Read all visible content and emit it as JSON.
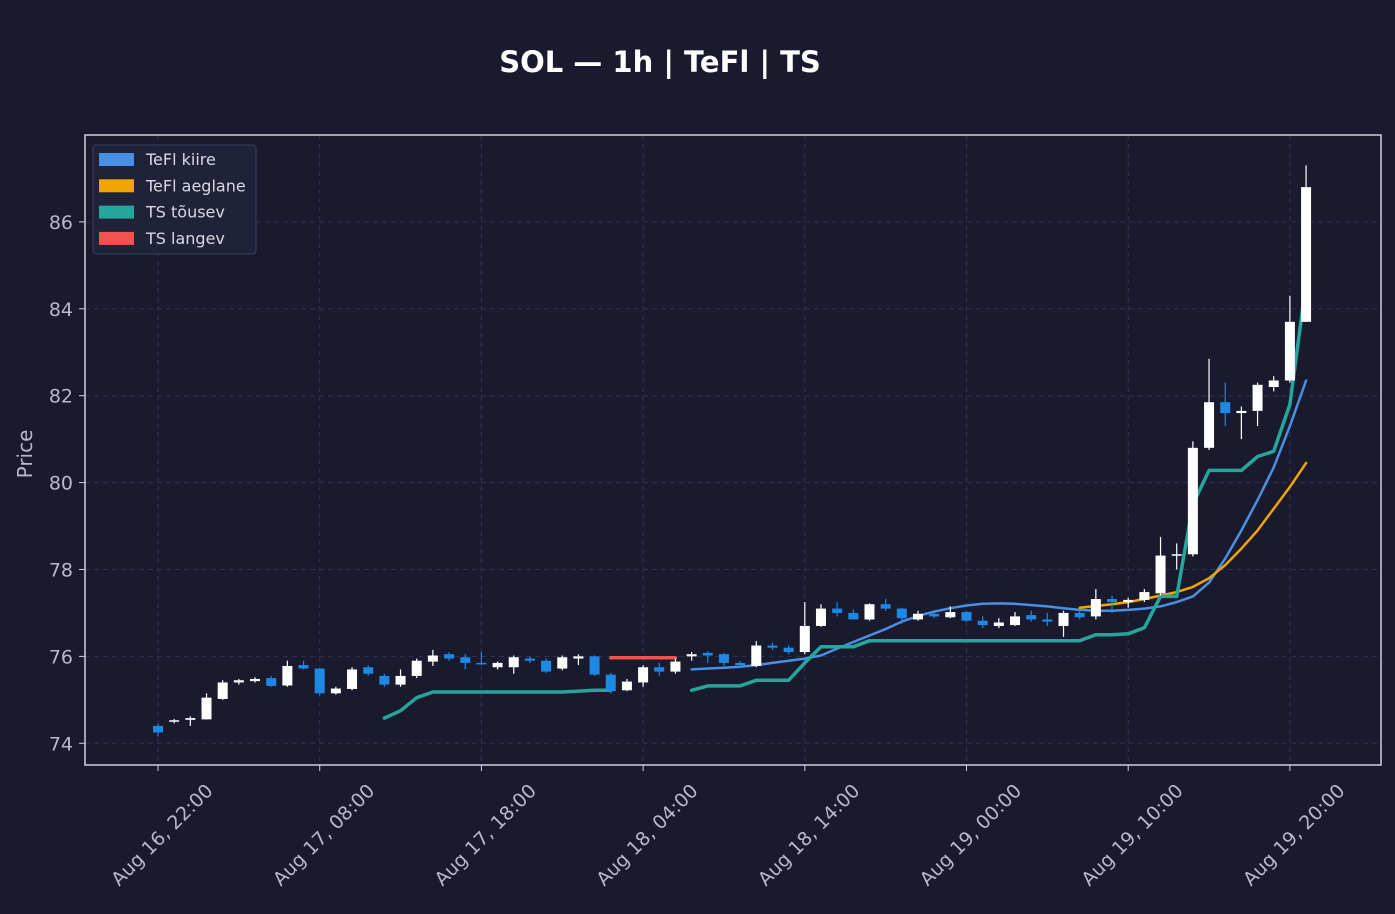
{
  "chart_data": {
    "type": "candlestick",
    "title": "SOL — 1h  |  TeFl  |  TS",
    "ylabel": "Price",
    "xlabel": "",
    "ylim": [
      73.5,
      88.0
    ],
    "y_ticks": [
      74,
      76,
      78,
      80,
      82,
      84,
      86
    ],
    "x_ticks": [
      {
        "hour": 0,
        "label": "Aug 16, 22:00"
      },
      {
        "hour": 10,
        "label": "Aug 17, 08:00"
      },
      {
        "hour": 20,
        "label": "Aug 17, 18:00"
      },
      {
        "hour": 30,
        "label": "Aug 18, 04:00"
      },
      {
        "hour": 40,
        "label": "Aug 18, 14:00"
      },
      {
        "hour": 50,
        "label": "Aug 19, 00:00"
      },
      {
        "hour": 60,
        "label": "Aug 19, 10:00"
      },
      {
        "hour": 70,
        "label": "Aug 19, 20:00"
      }
    ],
    "grid": true,
    "legend_position": "top-left",
    "colors": {
      "background": "#1a1a2e",
      "up_candle": "#ffffff",
      "down_candle": "#1e88e5",
      "tefl_fast": "#4a90e2",
      "tefl_slow": "#f0a500",
      "ts_up": "#26a69a",
      "ts_down": "#ef5350",
      "grid": "#2e3250",
      "axes": "#d0d0d8"
    },
    "candles": [
      [
        74.4,
        74.45,
        74.15,
        74.25
      ],
      [
        74.5,
        74.56,
        74.46,
        74.53
      ],
      [
        74.54,
        74.62,
        74.4,
        74.58
      ],
      [
        74.55,
        75.15,
        74.55,
        75.05
      ],
      [
        75.02,
        75.45,
        75.0,
        75.4
      ],
      [
        75.4,
        75.48,
        75.35,
        75.45
      ],
      [
        75.43,
        75.52,
        75.4,
        75.48
      ],
      [
        75.5,
        75.55,
        75.3,
        75.32
      ],
      [
        75.33,
        75.9,
        75.3,
        75.78
      ],
      [
        75.8,
        75.9,
        75.7,
        75.72
      ],
      [
        75.72,
        75.73,
        75.1,
        75.15
      ],
      [
        75.15,
        75.3,
        75.12,
        75.26
      ],
      [
        75.25,
        75.75,
        75.22,
        75.7
      ],
      [
        75.75,
        75.8,
        75.55,
        75.6
      ],
      [
        75.55,
        75.6,
        75.3,
        75.35
      ],
      [
        75.35,
        75.7,
        75.3,
        75.55
      ],
      [
        75.55,
        75.95,
        75.5,
        75.9
      ],
      [
        75.88,
        76.15,
        75.78,
        76.02
      ],
      [
        76.05,
        76.1,
        75.9,
        75.95
      ],
      [
        75.98,
        76.05,
        75.7,
        75.85
      ],
      [
        75.85,
        76.1,
        75.8,
        75.82
      ],
      [
        75.75,
        75.88,
        75.7,
        75.85
      ],
      [
        75.75,
        76.02,
        75.6,
        75.98
      ],
      [
        75.95,
        76.0,
        75.85,
        75.9
      ],
      [
        75.9,
        75.95,
        75.62,
        75.65
      ],
      [
        75.72,
        76.02,
        75.68,
        75.98
      ],
      [
        75.95,
        76.05,
        75.8,
        76.0
      ],
      [
        76.0,
        76.02,
        75.55,
        75.58
      ],
      [
        75.58,
        75.62,
        75.15,
        75.2
      ],
      [
        75.22,
        75.48,
        75.2,
        75.42
      ],
      [
        75.4,
        75.8,
        75.3,
        75.75
      ],
      [
        75.75,
        75.85,
        75.55,
        75.65
      ],
      [
        75.65,
        75.95,
        75.6,
        75.88
      ],
      [
        76.0,
        76.1,
        75.9,
        76.05
      ],
      [
        76.08,
        76.12,
        75.85,
        76.02
      ],
      [
        76.05,
        76.08,
        75.78,
        75.85
      ],
      [
        75.85,
        75.9,
        75.75,
        75.8
      ],
      [
        75.78,
        76.35,
        75.75,
        76.25
      ],
      [
        76.25,
        76.32,
        76.15,
        76.2
      ],
      [
        76.2,
        76.25,
        76.05,
        76.1
      ],
      [
        76.1,
        77.25,
        76.05,
        76.7
      ],
      [
        76.7,
        77.2,
        76.68,
        77.1
      ],
      [
        77.1,
        77.25,
        76.92,
        77.0
      ],
      [
        77.0,
        77.08,
        76.85,
        76.85
      ],
      [
        76.85,
        77.22,
        76.82,
        77.2
      ],
      [
        77.2,
        77.32,
        77.05,
        77.1
      ],
      [
        77.1,
        77.12,
        76.75,
        76.88
      ],
      [
        76.85,
        77.05,
        76.82,
        76.98
      ],
      [
        76.98,
        77.02,
        76.88,
        76.92
      ],
      [
        76.9,
        77.15,
        76.88,
        77.02
      ],
      [
        77.02,
        77.05,
        76.8,
        76.82
      ],
      [
        76.82,
        76.92,
        76.65,
        76.72
      ],
      [
        76.7,
        76.88,
        76.65,
        76.78
      ],
      [
        76.72,
        77.02,
        76.7,
        76.92
      ],
      [
        76.95,
        77.05,
        76.8,
        76.85
      ],
      [
        76.85,
        77.0,
        76.7,
        76.8
      ],
      [
        76.7,
        77.05,
        76.45,
        77.0
      ],
      [
        77.0,
        77.05,
        76.85,
        76.9
      ],
      [
        76.92,
        77.55,
        76.85,
        77.32
      ],
      [
        77.32,
        77.4,
        77.0,
        77.25
      ],
      [
        77.25,
        77.35,
        77.12,
        77.3
      ],
      [
        77.3,
        77.55,
        77.25,
        77.48
      ],
      [
        77.45,
        78.75,
        77.4,
        78.32
      ],
      [
        78.32,
        78.6,
        78.0,
        78.35
      ],
      [
        78.35,
        80.95,
        78.3,
        80.8
      ],
      [
        80.8,
        82.85,
        80.75,
        81.85
      ],
      [
        81.85,
        82.3,
        81.3,
        81.6
      ],
      [
        81.6,
        81.75,
        81.0,
        81.65
      ],
      [
        81.65,
        82.3,
        81.3,
        82.25
      ],
      [
        82.2,
        82.45,
        82.1,
        82.35
      ],
      [
        82.35,
        84.3,
        82.3,
        83.7
      ],
      [
        83.7,
        87.3,
        83.7,
        86.8
      ]
    ],
    "series": [
      {
        "name": "TeFl kiire",
        "color": "#4a90e2",
        "start_hour": 33,
        "values": [
          75.7,
          75.72,
          75.74,
          75.76,
          75.8,
          75.85,
          75.9,
          75.95,
          76.02,
          76.18,
          76.33,
          76.48,
          76.63,
          76.8,
          76.93,
          77.03,
          77.11,
          77.17,
          77.21,
          77.22,
          77.21,
          77.18,
          77.15,
          77.11,
          77.07,
          77.05,
          77.05,
          77.07,
          77.1,
          77.15,
          77.25,
          77.38,
          77.7,
          78.25,
          78.9,
          79.6,
          80.35,
          81.3,
          82.35
        ]
      },
      {
        "name": "TeFl aeglane",
        "color": "#f0a500",
        "start_hour": 57,
        "values": [
          77.12,
          77.16,
          77.2,
          77.25,
          77.32,
          77.4,
          77.48,
          77.6,
          77.8,
          78.1,
          78.48,
          78.9,
          79.4,
          79.9,
          80.45
        ]
      },
      {
        "name": "TS tõusev",
        "color": "#26a69a",
        "segments": [
          {
            "start_hour": 14,
            "values": [
              74.58,
              74.75,
              75.05,
              75.18,
              75.18,
              75.18,
              75.18,
              75.18,
              75.18,
              75.18,
              75.18,
              75.18,
              75.2,
              75.22,
              75.22
            ]
          },
          {
            "start_hour": 33,
            "values": [
              75.22,
              75.32,
              75.32,
              75.32,
              75.45,
              75.45,
              75.45,
              75.85,
              76.22,
              76.22,
              76.22,
              76.36,
              76.36,
              76.36,
              76.36,
              76.36,
              76.36,
              76.36,
              76.36,
              76.36,
              76.36,
              76.36,
              76.36,
              76.36,
              76.36,
              76.5,
              76.5,
              76.52,
              76.66,
              77.38,
              77.38,
              79.5,
              80.28,
              80.28,
              80.28,
              80.6,
              80.72,
              81.8,
              84.6
            ]
          }
        ]
      },
      {
        "name": "TS langev",
        "color": "#ef5350",
        "segments": [
          {
            "start_hour": 28,
            "values": [
              75.97,
              75.97,
              75.97,
              75.97,
              75.97
            ]
          }
        ]
      }
    ],
    "legend": [
      "TeFl kiire",
      "TeFl aeglane",
      "TS tõusev",
      "TS langev"
    ]
  }
}
